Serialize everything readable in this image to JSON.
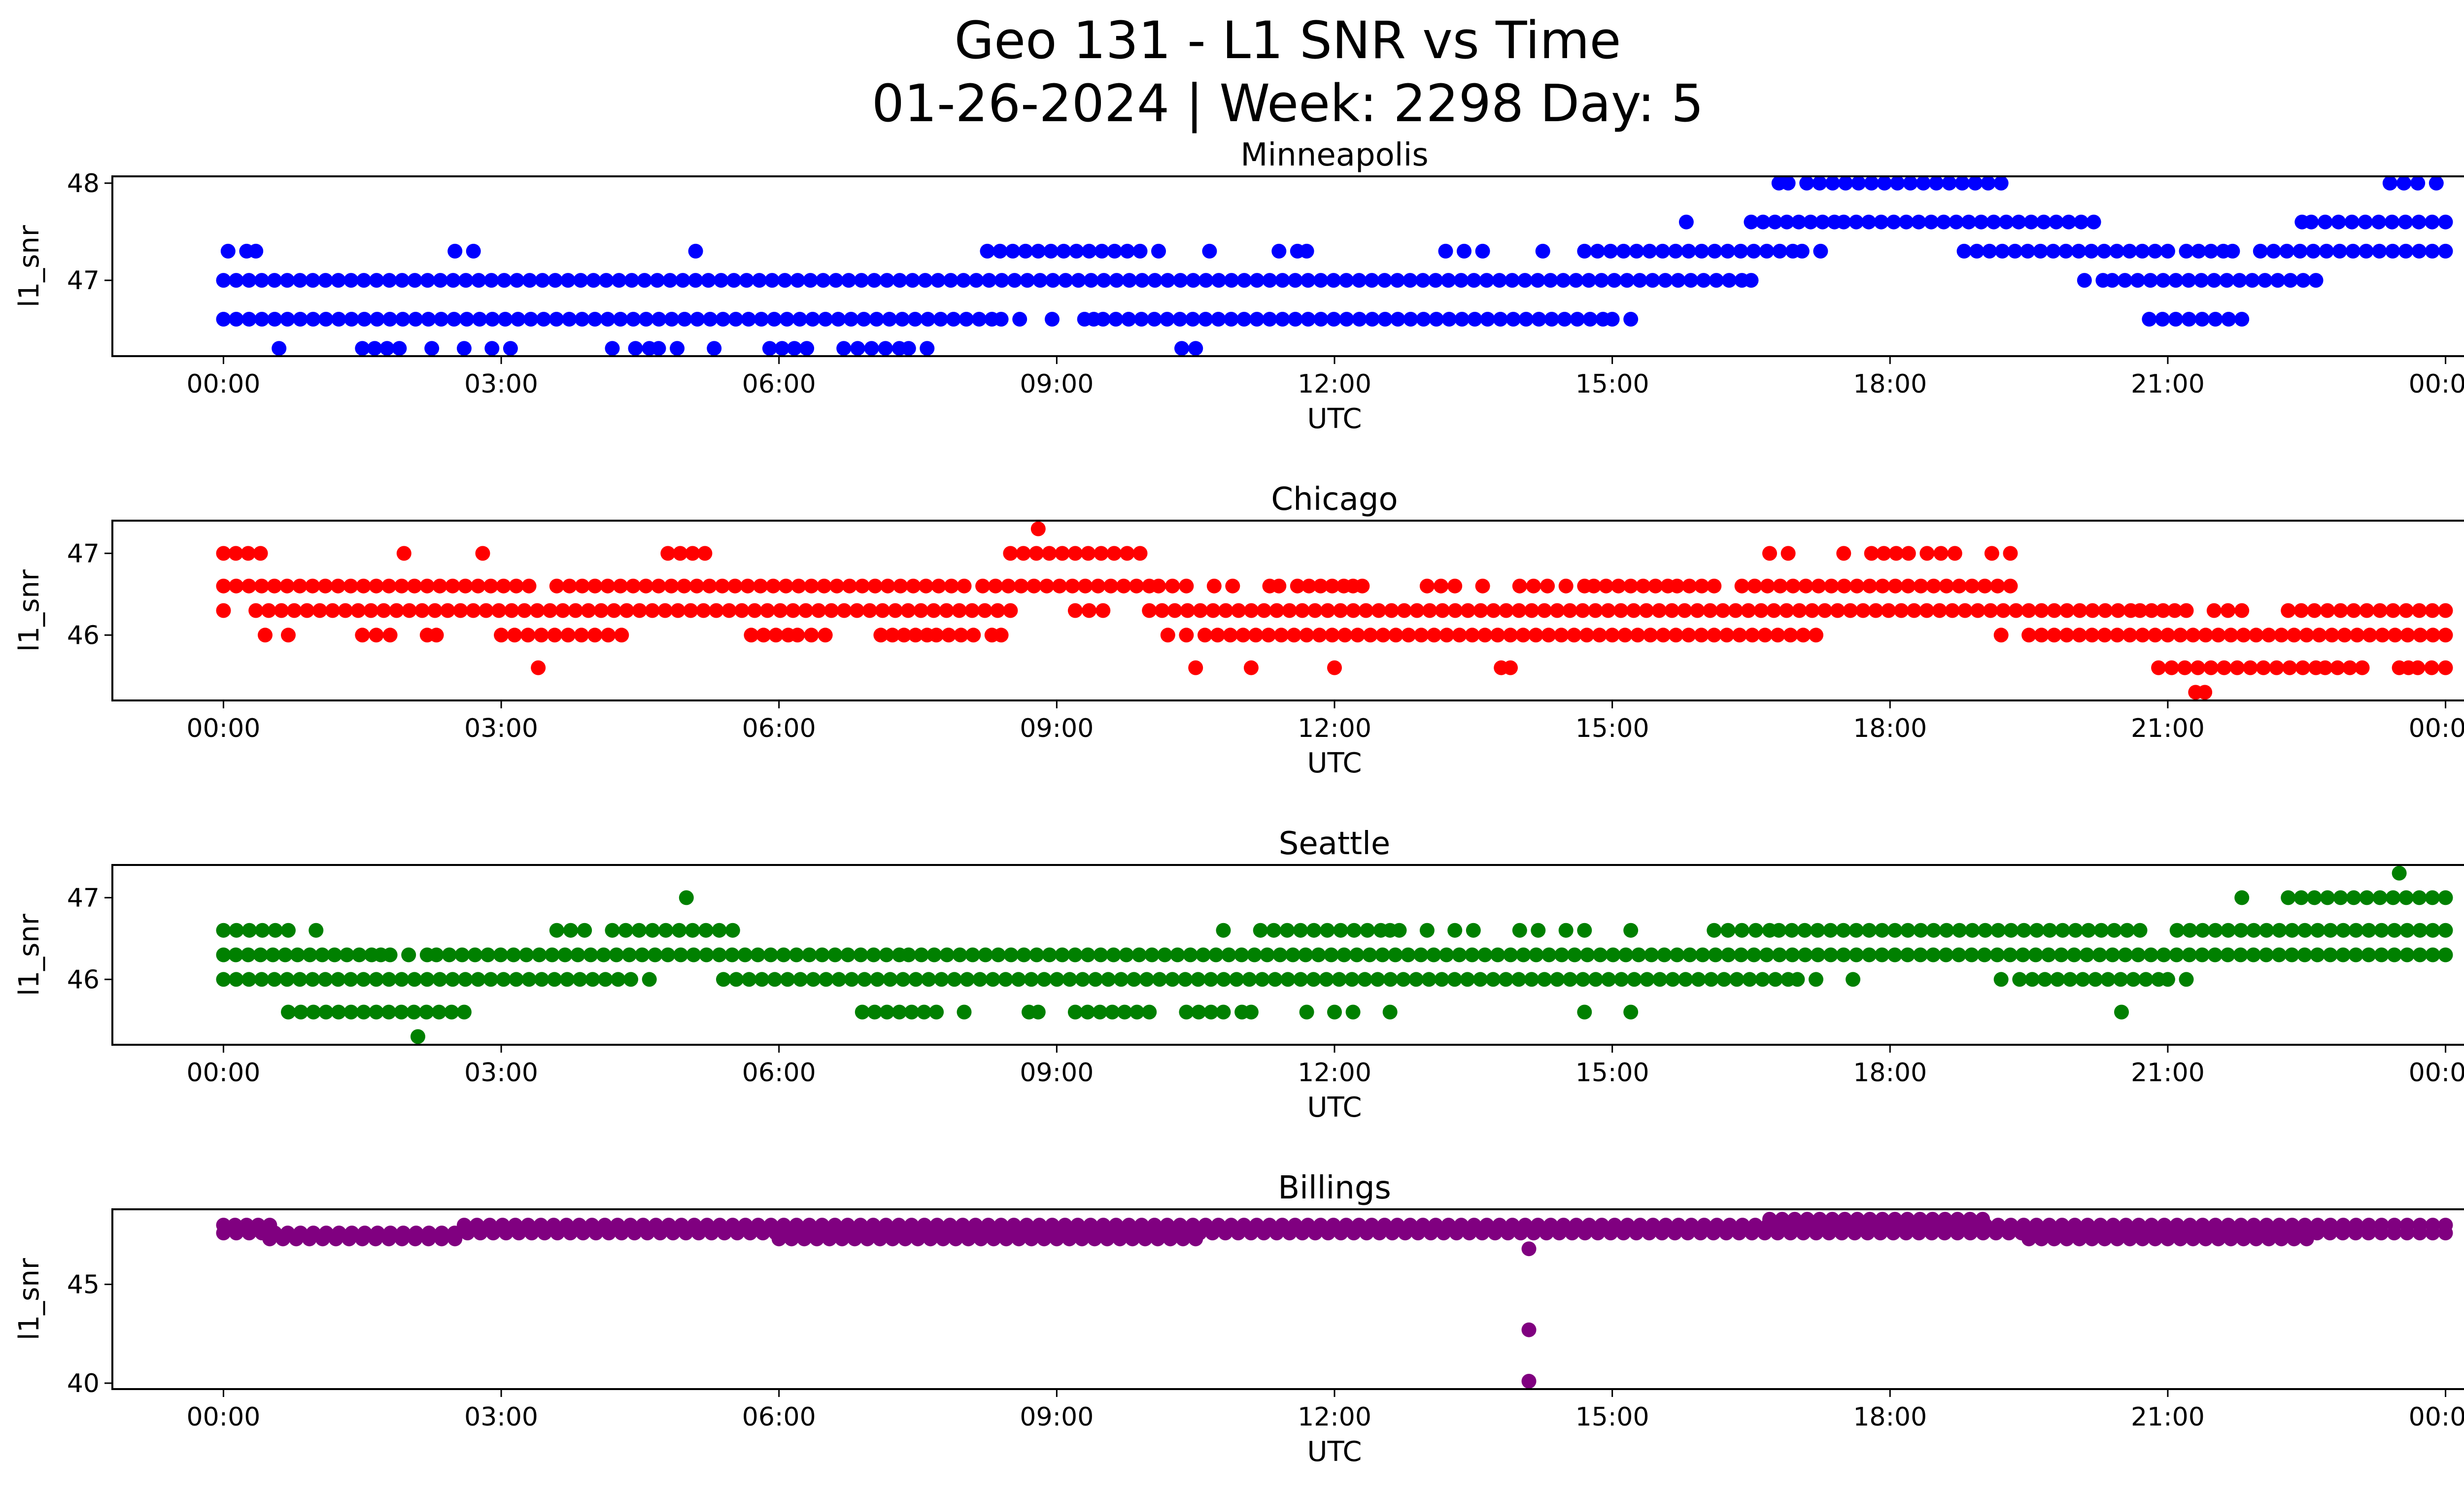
{
  "figure": {
    "title_line1": "Geo 131 - L1 SNR vs Time",
    "title_line2": "01-26-2024 | Week: 2298 Day: 5"
  },
  "chart_data": [
    {
      "type": "scatter",
      "title": "Minneapolis",
      "xlabel": "UTC",
      "ylabel": "l1_snr",
      "color": "#0000ff",
      "x_range_hours": [
        -1.2,
        25.2
      ],
      "ylim": [
        46.22,
        48.07
      ],
      "x_ticks": [
        "00:00",
        "03:00",
        "06:00",
        "09:00",
        "12:00",
        "15:00",
        "18:00",
        "21:00",
        "00:00"
      ],
      "y_ticks": [
        47,
        48
      ],
      "bands": [
        {
          "y": 47.0,
          "segments": [
            [
              0.0,
              16.4
            ],
            [
              16.5,
              16.55
            ],
            [
              20.1,
              20.3
            ],
            [
              20.4,
              22.6
            ]
          ]
        },
        {
          "y": 46.6,
          "segments": [
            [
              0.0,
              8.3
            ],
            [
              8.4,
              8.6
            ],
            [
              8.95,
              8.95
            ],
            [
              9.3,
              9.4
            ],
            [
              9.5,
              14.9
            ],
            [
              15.0,
              15.2
            ],
            [
              20.8,
              21.8
            ]
          ]
        },
        {
          "y": 47.3,
          "segments": [
            [
              0.05,
              0.25
            ],
            [
              0.35,
              0.35
            ],
            [
              2.5,
              2.5
            ],
            [
              2.7,
              2.7
            ],
            [
              5.1,
              5.1
            ],
            [
              8.25,
              9.9
            ],
            [
              10.1,
              10.1
            ],
            [
              10.65,
              10.65
            ],
            [
              11.4,
              11.4
            ],
            [
              11.6,
              11.7
            ],
            [
              13.2,
              13.4
            ],
            [
              13.6,
              13.6
            ],
            [
              14.25,
              14.25
            ],
            [
              14.7,
              16.95
            ],
            [
              17.05,
              17.05
            ],
            [
              17.25,
              17.25
            ],
            [
              18.8,
              21.0
            ],
            [
              21.2,
              21.6
            ],
            [
              21.7,
              21.75
            ],
            [
              22.0,
              24.0
            ]
          ]
        },
        {
          "y": 46.3,
          "segments": [
            [
              0.6,
              0.6
            ],
            [
              1.5,
              1.9
            ],
            [
              2.25,
              2.25
            ],
            [
              2.6,
              2.6
            ],
            [
              2.9,
              2.9
            ],
            [
              3.1,
              3.1
            ],
            [
              4.2,
              4.2
            ],
            [
              4.45,
              4.6
            ],
            [
              4.7,
              4.9
            ],
            [
              5.3,
              5.3
            ],
            [
              5.9,
              6.3
            ],
            [
              6.7,
              7.3
            ],
            [
              7.4,
              7.6
            ],
            [
              10.35,
              10.5
            ]
          ]
        },
        {
          "y": 47.6,
          "segments": [
            [
              15.8,
              15.8
            ],
            [
              16.5,
              17.4
            ],
            [
              17.5,
              20.2
            ],
            [
              22.45,
              22.55
            ],
            [
              22.7,
              24.0
            ]
          ]
        },
        {
          "y": 48.0,
          "segments": [
            [
              16.8,
              16.9
            ],
            [
              17.1,
              19.2
            ],
            [
              23.4,
              23.7
            ],
            [
              23.9,
              23.9
            ]
          ]
        }
      ],
      "points": []
    },
    {
      "type": "scatter",
      "title": "Chicago",
      "xlabel": "UTC",
      "ylabel": "l1_snr",
      "color": "#ff0000",
      "x_range_hours": [
        -1.2,
        25.2
      ],
      "ylim": [
        45.2,
        47.4
      ],
      "x_ticks": [
        "00:00",
        "03:00",
        "06:00",
        "09:00",
        "12:00",
        "15:00",
        "18:00",
        "21:00",
        "00:00"
      ],
      "y_ticks": [
        46,
        47
      ],
      "bands": [
        {
          "y": 46.6,
          "segments": [
            [
              0.0,
              3.3
            ],
            [
              3.6,
              8.0
            ],
            [
              8.2,
              10.0
            ],
            [
              10.1,
              10.4
            ],
            [
              10.7,
              10.9
            ],
            [
              11.3,
              11.4
            ],
            [
              11.6,
              12.1
            ],
            [
              12.2,
              12.3
            ],
            [
              13.0,
              13.3
            ],
            [
              13.6,
              13.6
            ],
            [
              14.0,
              14.3
            ],
            [
              14.5,
              14.7
            ],
            [
              14.8,
              15.6
            ],
            [
              15.7,
              16.1
            ],
            [
              16.4,
              19.3
            ]
          ]
        },
        {
          "y": 46.3,
          "segments": [
            [
              0.0,
              0.0
            ],
            [
              0.35,
              8.5
            ],
            [
              9.2,
              9.5
            ],
            [
              10.0,
              20.6
            ],
            [
              20.7,
              21.2
            ],
            [
              21.5,
              21.8
            ],
            [
              22.3,
              24.0
            ]
          ]
        },
        {
          "y": 46.0,
          "segments": [
            [
              0.45,
              0.45
            ],
            [
              0.7,
              0.7
            ],
            [
              1.5,
              1.8
            ],
            [
              2.2,
              2.3
            ],
            [
              3.0,
              4.3
            ],
            [
              5.7,
              6.1
            ],
            [
              6.2,
              6.5
            ],
            [
              7.1,
              7.6
            ],
            [
              7.7,
              8.1
            ],
            [
              8.3,
              8.4
            ],
            [
              10.2,
              10.4
            ],
            [
              10.6,
              17.2
            ],
            [
              19.2,
              19.2
            ],
            [
              19.5,
              24.0
            ]
          ]
        },
        {
          "y": 47.0,
          "segments": [
            [
              0.0,
              0.4
            ],
            [
              1.95,
              1.95
            ],
            [
              2.8,
              2.8
            ],
            [
              4.8,
              5.2
            ],
            [
              8.5,
              9.9
            ],
            [
              16.7,
              16.9
            ],
            [
              17.5,
              17.5
            ],
            [
              17.8,
              18.2
            ],
            [
              18.4,
              18.7
            ],
            [
              19.1,
              19.1
            ],
            [
              19.3,
              19.3
            ]
          ]
        },
        {
          "y": 45.6,
          "segments": [
            [
              3.4,
              3.4
            ],
            [
              10.5,
              10.5
            ],
            [
              11.1,
              11.1
            ],
            [
              12.0,
              12.0
            ],
            [
              13.8,
              13.9
            ],
            [
              20.9,
              22.6
            ],
            [
              22.7,
              23.1
            ],
            [
              23.5,
              23.6
            ],
            [
              23.7,
              24.0
            ]
          ]
        },
        {
          "y": 47.3,
          "segments": [
            [
              8.8,
              8.8
            ]
          ]
        },
        {
          "y": 45.3,
          "segments": [
            [
              21.3,
              21.4
            ]
          ]
        }
      ],
      "points": []
    },
    {
      "type": "scatter",
      "title": "Seattle",
      "xlabel": "UTC",
      "ylabel": "l1_snr",
      "color": "#008000",
      "x_range_hours": [
        -1.2,
        25.2
      ],
      "ylim": [
        45.2,
        47.4
      ],
      "x_ticks": [
        "00:00",
        "03:00",
        "06:00",
        "09:00",
        "12:00",
        "15:00",
        "18:00",
        "21:00",
        "00:00"
      ],
      "y_ticks": [
        46,
        47
      ],
      "bands": [
        {
          "y": 46.3,
          "segments": [
            [
              0.0,
              1.6
            ],
            [
              1.7,
              1.8
            ],
            [
              2.0,
              2.2
            ],
            [
              2.3,
              7.3
            ],
            [
              7.4,
              24.0
            ]
          ]
        },
        {
          "y": 46.0,
          "segments": [
            [
              0.0,
              4.4
            ],
            [
              4.6,
              4.6
            ],
            [
              5.4,
              16.9
            ],
            [
              17.0,
              17.2
            ],
            [
              17.6,
              17.6
            ],
            [
              19.2,
              19.2
            ],
            [
              19.4,
              20.9
            ],
            [
              21.0,
              21.2
            ]
          ]
        },
        {
          "y": 45.6,
          "segments": [
            [
              0.7,
              2.6
            ],
            [
              6.9,
              7.7
            ],
            [
              8.0,
              8.0
            ],
            [
              8.7,
              8.8
            ],
            [
              9.2,
              10.0
            ],
            [
              10.4,
              10.8
            ],
            [
              11.0,
              11.1
            ],
            [
              11.7,
              11.7
            ],
            [
              12.0,
              12.2
            ],
            [
              12.6,
              12.6
            ],
            [
              14.7,
              14.7
            ],
            [
              15.2,
              15.2
            ],
            [
              20.5,
              20.5
            ]
          ]
        },
        {
          "y": 46.6,
          "segments": [
            [
              0.0,
              0.7
            ],
            [
              1.0,
              1.0
            ],
            [
              3.6,
              3.9
            ],
            [
              4.2,
              5.5
            ],
            [
              10.8,
              10.8
            ],
            [
              11.2,
              12.5
            ],
            [
              12.6,
              12.7
            ],
            [
              13.0,
              13.0
            ],
            [
              13.3,
              13.5
            ],
            [
              14.0,
              14.2
            ],
            [
              14.5,
              14.7
            ],
            [
              15.2,
              15.2
            ],
            [
              16.1,
              16.7
            ],
            [
              16.8,
              20.7
            ],
            [
              21.1,
              24.0
            ]
          ]
        },
        {
          "y": 47.0,
          "segments": [
            [
              5.0,
              5.0
            ],
            [
              21.8,
              21.8
            ],
            [
              22.3,
              24.0
            ]
          ]
        },
        {
          "y": 45.3,
          "segments": [
            [
              2.1,
              2.1
            ]
          ]
        },
        {
          "y": 47.3,
          "segments": [
            [
              23.5,
              23.5
            ]
          ]
        }
      ],
      "points": []
    },
    {
      "type": "scatter",
      "title": "Billings",
      "xlabel": "UTC",
      "ylabel": "l1_snr",
      "color": "#800080",
      "x_range_hours": [
        -1.2,
        25.2
      ],
      "ylim": [
        39.7,
        48.8
      ],
      "x_ticks": [
        "00:00",
        "03:00",
        "06:00",
        "09:00",
        "12:00",
        "15:00",
        "18:00",
        "21:00",
        "00:00"
      ],
      "y_ticks": [
        40,
        45
      ],
      "bands": [
        {
          "y": 48.0,
          "segments": [
            [
              0.0,
              0.5
            ],
            [
              2.6,
              24.0
            ]
          ]
        },
        {
          "y": 47.6,
          "segments": [
            [
              0.0,
              24.0
            ]
          ]
        },
        {
          "y": 47.3,
          "segments": [
            [
              0.5,
              2.5
            ],
            [
              6.0,
              10.5
            ],
            [
              19.5,
              22.5
            ]
          ]
        },
        {
          "y": 48.3,
          "segments": [
            [
              16.7,
              19.0
            ]
          ]
        }
      ],
      "points": [
        {
          "x": 14.1,
          "y": 46.8
        },
        {
          "x": 14.1,
          "y": 42.7
        },
        {
          "x": 14.1,
          "y": 40.1
        }
      ]
    }
  ]
}
